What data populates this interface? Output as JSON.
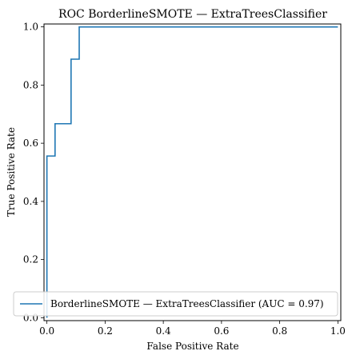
{
  "chart_data": {
    "type": "line",
    "title": "ROC BorderlineSMOTE — ExtraTreesClassifier",
    "xlabel": "False Positive Rate",
    "ylabel": "True Positive Rate",
    "xlim": [
      -0.01,
      1.01
    ],
    "ylim": [
      -0.01,
      1.01
    ],
    "x_ticks": [
      0.0,
      0.2,
      0.4,
      0.6,
      0.8,
      1.0
    ],
    "x_tick_labels": [
      "0.0",
      "0.2",
      "0.4",
      "0.6",
      "0.8",
      "1.0"
    ],
    "y_ticks": [
      0.0,
      0.2,
      0.4,
      0.6,
      0.8,
      1.0
    ],
    "y_tick_labels": [
      "0.0",
      "0.2",
      "0.4",
      "0.6",
      "0.8",
      "1.0"
    ],
    "grid": false,
    "legend_position": "lower-right",
    "series": [
      {
        "name": "BorderlineSMOTE — ExtraTreesClassifier (AUC = 0.97)",
        "color": "#1f77b4",
        "x": [
          0.0,
          0.0,
          0.0,
          0.0,
          0.028,
          0.028,
          0.083,
          0.083,
          0.111,
          0.111,
          1.0
        ],
        "y": [
          0.0,
          0.111,
          0.556,
          0.556,
          0.556,
          0.667,
          0.667,
          0.889,
          0.889,
          1.0,
          1.0
        ]
      }
    ]
  }
}
